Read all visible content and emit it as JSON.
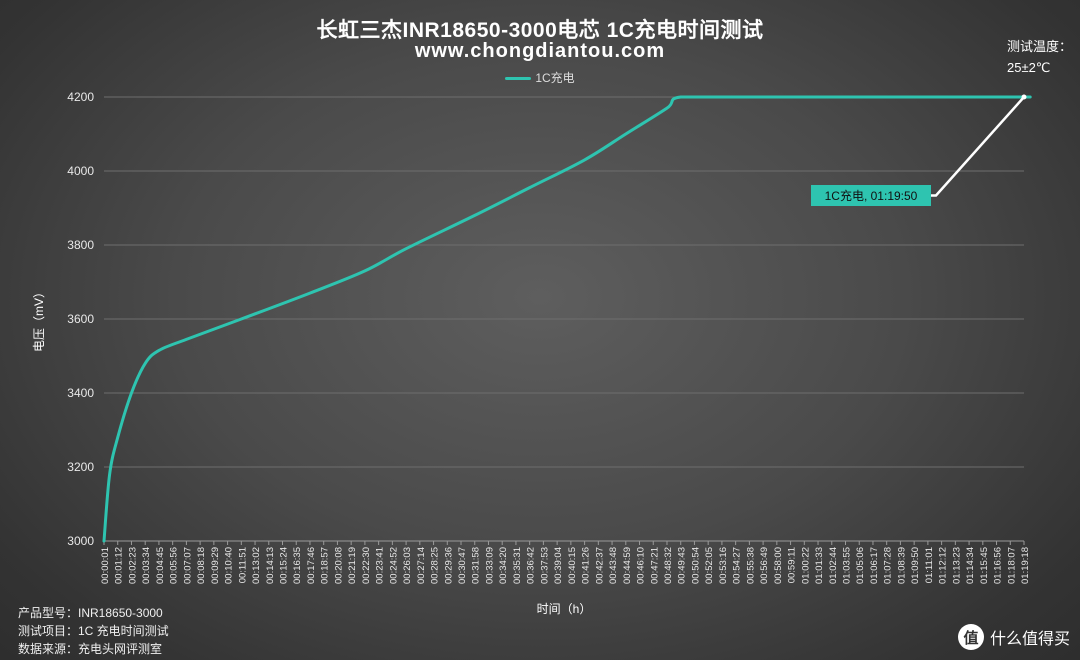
{
  "chart_data": {
    "type": "line",
    "title": "长虹三杰INR18650-3000电芯 1C充电时间测试",
    "subtitle": "www.chongdiantou.com",
    "xlabel": "时间（h）",
    "ylabel": "电压（mV）",
    "ylim": [
      3000,
      4200
    ],
    "yticks": [
      3000,
      3200,
      3400,
      3600,
      3800,
      4000,
      4200
    ],
    "grid": "horizontal",
    "legend_position": "top-center",
    "series": [
      {
        "name": "1C充电",
        "color": "#2ec4b0",
        "x": [
          "00:00:01",
          "00:00:30",
          "00:01:12",
          "00:02:23",
          "00:03:34",
          "00:04:45",
          "00:07:07",
          "00:11:51",
          "00:17:46",
          "00:22:30",
          "00:26:03",
          "00:31:58",
          "00:36:42",
          "00:41:26",
          "00:44:59",
          "00:48:32",
          "00:49:43",
          "00:55:38",
          "01:01:33",
          "01:07:28",
          "01:13:23",
          "01:19:18",
          "01:19:50"
        ],
        "values": [
          3000,
          3180,
          3280,
          3400,
          3480,
          3515,
          3545,
          3600,
          3670,
          3730,
          3790,
          3880,
          3955,
          4030,
          4100,
          4170,
          4200,
          4200,
          4200,
          4200,
          4200,
          4200,
          4200
        ]
      }
    ],
    "x_tick_labels": [
      "00:00:01",
      "00:01:12",
      "00:02:23",
      "00:03:34",
      "00:04:45",
      "00:05:56",
      "00:07:07",
      "00:08:18",
      "00:09:29",
      "00:10:40",
      "00:11:51",
      "00:13:02",
      "00:14:13",
      "00:15:24",
      "00:16:35",
      "00:17:46",
      "00:18:57",
      "00:20:08",
      "00:21:19",
      "00:22:30",
      "00:23:41",
      "00:24:52",
      "00:26:03",
      "00:27:14",
      "00:28:25",
      "00:29:36",
      "00:30:47",
      "00:31:58",
      "00:33:09",
      "00:34:20",
      "00:35:31",
      "00:36:42",
      "00:37:53",
      "00:39:04",
      "00:40:15",
      "00:41:26",
      "00:42:37",
      "00:43:48",
      "00:44:59",
      "00:46:10",
      "00:47:21",
      "00:48:32",
      "00:49:43",
      "00:50:54",
      "00:52:05",
      "00:53:16",
      "00:54:27",
      "00:55:38",
      "00:56:49",
      "00:58:00",
      "00:59:11",
      "01:00:22",
      "01:01:33",
      "01:02:44",
      "01:03:55",
      "01:05:06",
      "01:06:17",
      "01:07:28",
      "01:08:39",
      "01:09:50",
      "01:11:01",
      "01:12:12",
      "01:13:23",
      "01:14:34",
      "01:15:45",
      "01:16:56",
      "01:18:07",
      "01:19:18"
    ],
    "annotation": {
      "text": "1C充电, 01:19:50",
      "x": "01:19:50",
      "y": 4200,
      "color": "#2ec4b0"
    }
  },
  "temperature": {
    "label": "测试温度：",
    "value": "25±2℃"
  },
  "footer": {
    "line1": "产品型号：INR18650-3000",
    "line2": "测试项目：1C 充电时间测试",
    "line3": "数据来源：充电头网评测室"
  },
  "brand": {
    "icon": "值",
    "text": "什么值得买"
  }
}
